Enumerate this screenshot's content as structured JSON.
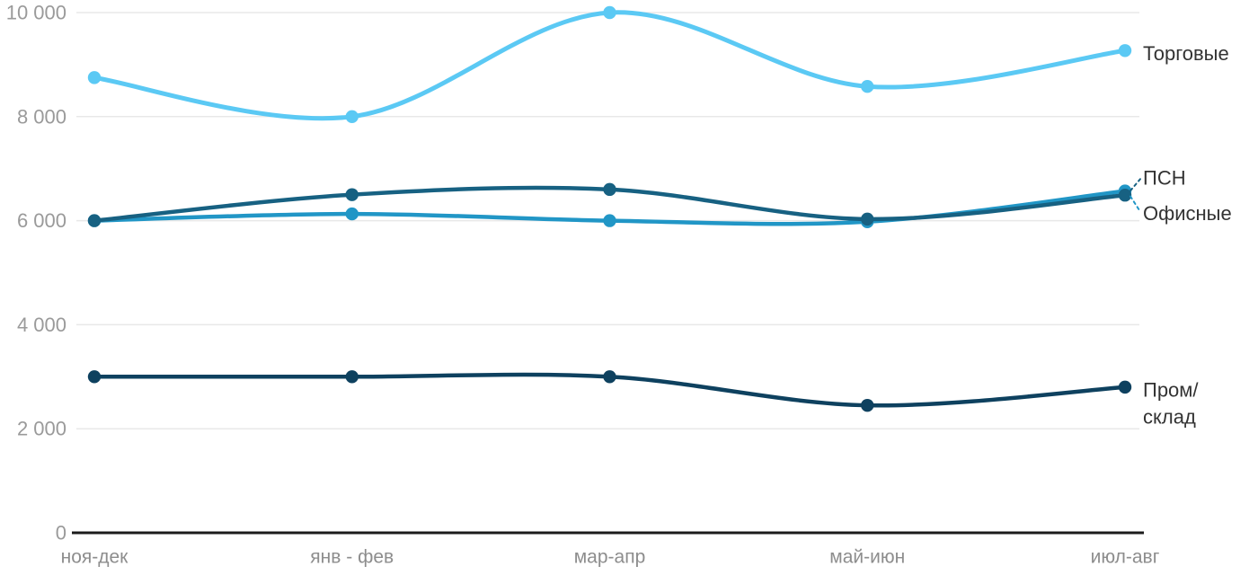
{
  "chart_data": {
    "type": "line",
    "curve": "smooth-spline",
    "categories": [
      "ноя-дек",
      "янв - фев",
      "мар-апр",
      "май-июн",
      "июл-авг"
    ],
    "series": [
      {
        "slug": "torgovye",
        "name": "Торговые",
        "color": "#5bc9f4",
        "values": [
          8750,
          8000,
          10000,
          8580,
          9270
        ],
        "label": {
          "lines": [
            "Торговые"
          ],
          "leader": null
        }
      },
      {
        "slug": "psn",
        "name": "ПСН",
        "color": "#176182",
        "values": [
          6000,
          6500,
          6600,
          6030,
          6490
        ],
        "label": {
          "lines": [
            "ПСН"
          ],
          "leader": "up"
        }
      },
      {
        "slug": "ofisnye",
        "name": "Офисные",
        "color": "#2196c6",
        "values": [
          6000,
          6130,
          6000,
          5980,
          6570
        ],
        "label": {
          "lines": [
            "Офисные"
          ],
          "leader": "down"
        }
      },
      {
        "slug": "prom-sklad",
        "name": "Пром/склад",
        "color": "#0e415f",
        "values": [
          3000,
          3000,
          3000,
          2450,
          2800
        ],
        "label": {
          "lines": [
            "Пром/",
            "склад"
          ],
          "leader": null
        }
      }
    ],
    "draw_order": [
      "torgovye",
      "ofisnye",
      "psn",
      "prom-sklad"
    ],
    "title": "",
    "xlabel": "",
    "ylabel": "",
    "ylim": [
      0,
      10000
    ],
    "yticks": [
      0,
      2000,
      4000,
      6000,
      8000,
      10000
    ],
    "ytick_labels": [
      "0",
      "2 000",
      "4 000",
      "6 000",
      "8 000",
      "10 000"
    ],
    "grid": true,
    "legend_position": "direct-labels-right"
  },
  "colors": {
    "background": "#ffffff",
    "gridline": "#e8e8e8",
    "zero_axis": "#1b1b1b",
    "ytick_text": "#9a9a9a",
    "xtick_text": "#8d8d8d",
    "series_label_text": "#333333"
  }
}
